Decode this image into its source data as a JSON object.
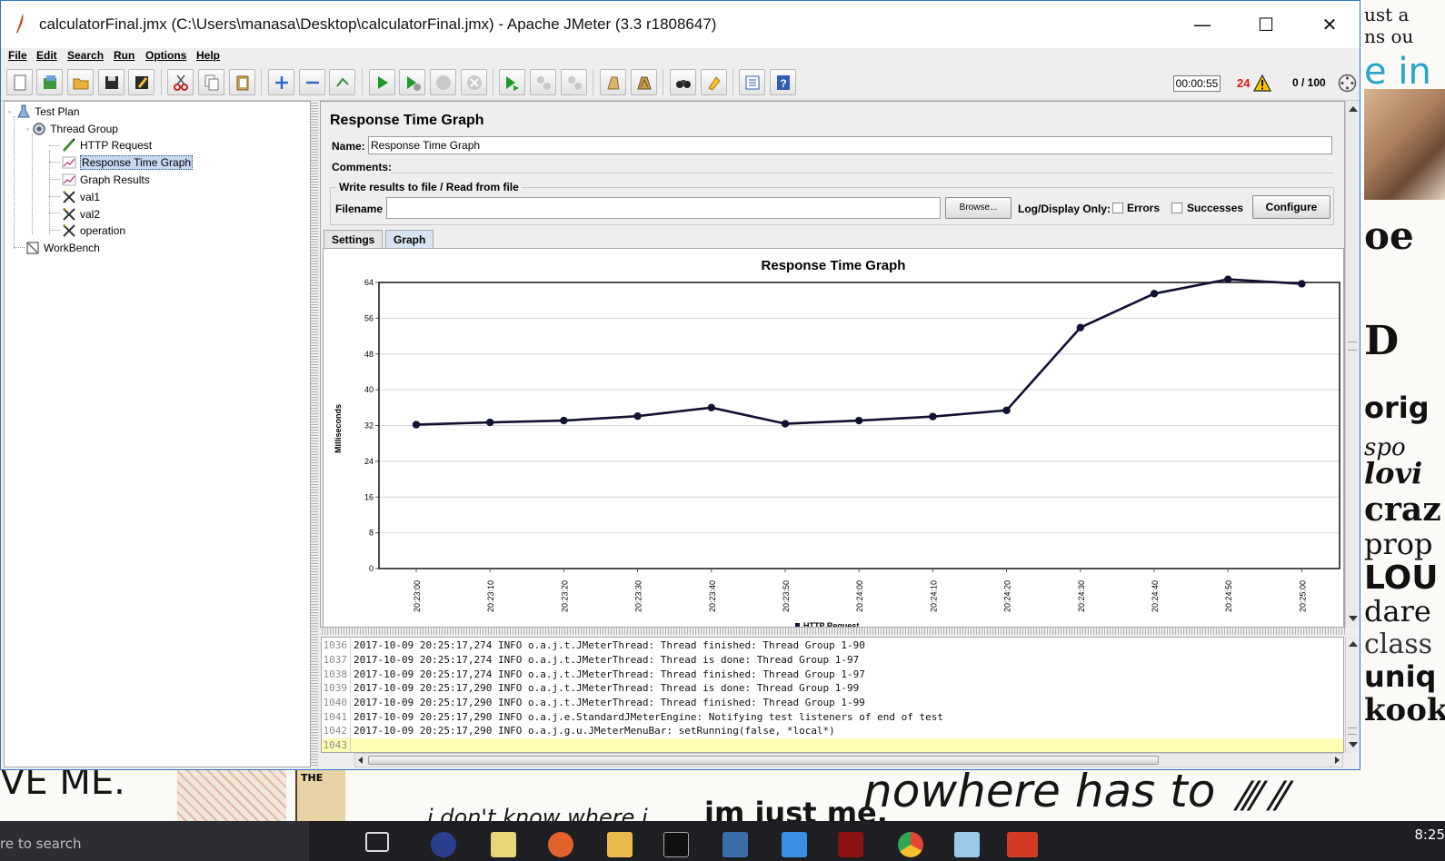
{
  "window": {
    "title": "calculatorFinal.jmx (C:\\Users\\manasa\\Desktop\\calculatorFinal.jmx) - Apache JMeter (3.3 r1808647)",
    "controls": {
      "minimize": "—",
      "maximize": "☐",
      "close": "✕"
    }
  },
  "menu": {
    "items": [
      {
        "label": "File"
      },
      {
        "label": "Edit"
      },
      {
        "label": "Search"
      },
      {
        "label": "Run"
      },
      {
        "label": "Options"
      },
      {
        "label": "Help"
      }
    ]
  },
  "toolbar": {
    "buttons": [
      "new-icon",
      "templates-icon",
      "open-icon",
      "save-icon",
      "save-as-icon",
      "cut-icon",
      "copy-icon",
      "paste-icon",
      "expand-icon",
      "collapse-icon",
      "toggle-icon",
      "start-icon",
      "start-no-pauses-icon",
      "stop-icon",
      "shutdown-icon",
      "remote-start-icon",
      "remote-stop-icon",
      "remote-shutdown-icon",
      "clear-icon",
      "clear-all-icon",
      "search-icon",
      "reset-search-icon",
      "function-helper-icon",
      "help-icon"
    ],
    "elapsed_time": "00:00:55",
    "error_count": "24",
    "active_threads": "0 / 100"
  },
  "tree": {
    "nodes": [
      {
        "label": "Test Plan",
        "icon": "test-plan-icon"
      },
      {
        "label": "Thread Group",
        "icon": "thread-group-icon"
      },
      {
        "label": "HTTP Request",
        "icon": "http-request-icon"
      },
      {
        "label": "Response Time Graph",
        "icon": "graph-icon"
      },
      {
        "label": "Graph Results",
        "icon": "graph-icon"
      },
      {
        "label": "val1",
        "icon": "config-icon"
      },
      {
        "label": "val2",
        "icon": "config-icon"
      },
      {
        "label": "operation",
        "icon": "config-icon"
      },
      {
        "label": "WorkBench",
        "icon": "workbench-icon"
      }
    ],
    "selected": "Response Time Graph"
  },
  "panel": {
    "title": "Response Time Graph",
    "name_label": "Name:",
    "name_value": "Response Time Graph",
    "comments_label": "Comments:",
    "file_section_title": "Write results to file / Read from file",
    "filename_label": "Filename",
    "filename_value": "",
    "browse_label": "Browse...",
    "log_display_label": "Log/Display Only:",
    "errors_label": "Errors",
    "successes_label": "Successes",
    "configure_label": "Configure",
    "tabs": [
      {
        "label": "Settings"
      },
      {
        "label": "Graph"
      }
    ],
    "active_tab": "Graph"
  },
  "chart_data": {
    "type": "line",
    "title": "Response Time Graph",
    "ylabel": "Milliseconds",
    "xlabel": "",
    "ylim": [
      0,
      64
    ],
    "yticks": [
      0,
      8,
      16,
      24,
      32,
      40,
      48,
      56,
      64
    ],
    "categories": [
      "20:23:00",
      "20:23:10",
      "20:23:20",
      "20:23:30",
      "20:23:40",
      "20:23:50",
      "20:24:00",
      "20:24:10",
      "20:24:20",
      "20:24:30",
      "20:24:40",
      "20:24:50",
      "20:25:00"
    ],
    "series": [
      {
        "name": "HTTP Request",
        "color": "#111133",
        "values": [
          32.2,
          32.7,
          33.1,
          34.1,
          36.0,
          32.4,
          33.1,
          34.0,
          35.4,
          53.9,
          61.5,
          64.7,
          63.7
        ]
      }
    ],
    "grid": true,
    "legend": "bottom"
  },
  "log": {
    "lines": [
      {
        "n": "1036",
        "text": "2017-10-09 20:25:17,274 INFO o.a.j.t.JMeterThread: Thread finished: Thread Group 1-90"
      },
      {
        "n": "1037",
        "text": "2017-10-09 20:25:17,274 INFO o.a.j.t.JMeterThread: Thread is done: Thread Group 1-97"
      },
      {
        "n": "1038",
        "text": "2017-10-09 20:25:17,274 INFO o.a.j.t.JMeterThread: Thread finished: Thread Group 1-97"
      },
      {
        "n": "1039",
        "text": "2017-10-09 20:25:17,290 INFO o.a.j.t.JMeterThread: Thread is done: Thread Group 1-99"
      },
      {
        "n": "1040",
        "text": "2017-10-09 20:25:17,290 INFO o.a.j.t.JMeterThread: Thread finished: Thread Group 1-99"
      },
      {
        "n": "1041",
        "text": "2017-10-09 20:25:17,290 INFO o.a.j.e.StandardJMeterEngine: Notifying test listeners of end of test"
      },
      {
        "n": "1042",
        "text": "2017-10-09 20:25:17,290 INFO o.a.j.g.u.JMeterMenuBar: setRunning(false, *local*)"
      },
      {
        "n": "1043",
        "text": ""
      }
    ]
  },
  "desktop": {
    "right_words": [
      "ust a",
      "ns ou",
      "e in a",
      "oe",
      "D",
      "orig",
      "spo",
      "lovi",
      "craz",
      "prop",
      "LOU",
      "dare",
      "class",
      "uniq",
      "kook"
    ],
    "bottom_words": [
      "VE ME.",
      "nowhere has to",
      "im just me.",
      "i don't know where i",
      "THE"
    ],
    "taskbar": {
      "search_text": "re to search",
      "clock": "8:25"
    }
  },
  "colors": {
    "accent": "#2c76c9",
    "selection": "#c6d9f1",
    "error": "#e21010",
    "log_highlight": "#fffcb4"
  }
}
